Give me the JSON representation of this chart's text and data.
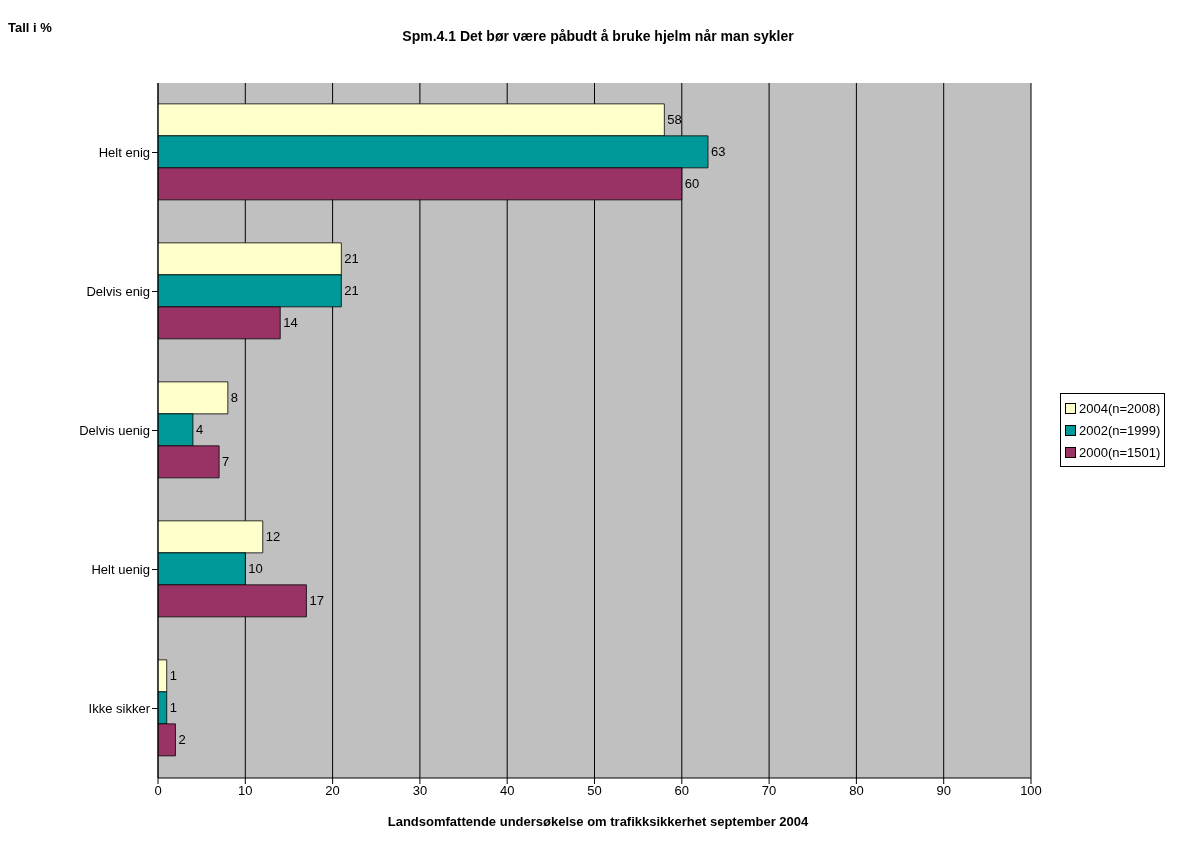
{
  "chart_data": {
    "type": "bar",
    "orientation": "horizontal",
    "title": "Spm.4.1 Det bør være påbudt å bruke hjelm når man sykler",
    "annotations": [
      "Tall i %",
      "Landsomfattende undersøkelse om trafikksikkerhet september 2004"
    ],
    "categories": [
      "Helt enig",
      "Delvis enig",
      "Delvis uenig",
      "Helt uenig",
      "Ikke sikker"
    ],
    "series": [
      {
        "name": "2004(n=2008)",
        "color": "#ffffcc",
        "values": [
          58,
          21,
          8,
          12,
          1
        ]
      },
      {
        "name": "2002(n=1999)",
        "color": "#009999",
        "values": [
          63,
          21,
          4,
          10,
          1
        ]
      },
      {
        "name": "2000(n=1501)",
        "color": "#993366",
        "values": [
          60,
          14,
          7,
          17,
          2
        ]
      }
    ],
    "xlim": [
      0,
      100
    ],
    "xticks": [
      0,
      10,
      20,
      30,
      40,
      50,
      60,
      70,
      80,
      90,
      100
    ],
    "grid": "x",
    "legend": "right",
    "data_labels": true
  }
}
